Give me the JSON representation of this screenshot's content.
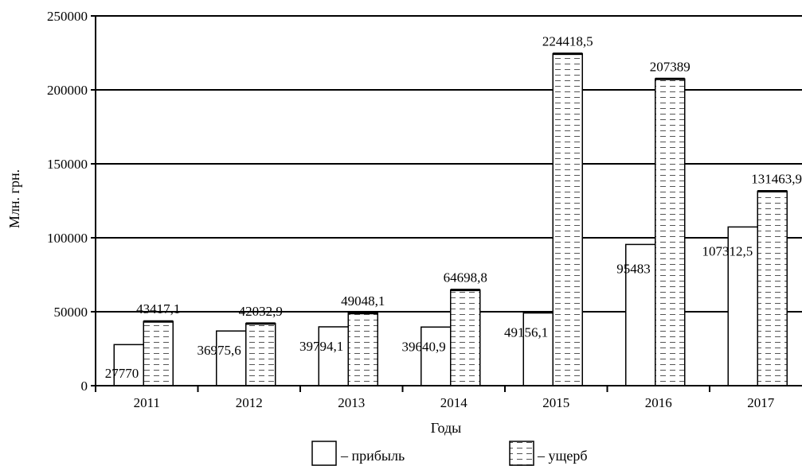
{
  "chart_data": {
    "type": "bar",
    "categories": [
      "2011",
      "2012",
      "2013",
      "2014",
      "2015",
      "2016",
      "2017"
    ],
    "series": [
      {
        "name": "прибыль",
        "values": [
          27770,
          36975.6,
          39794.1,
          39640.9,
          49156.1,
          95483,
          107312.5
        ],
        "labels": [
          "27770",
          "36975,6",
          "39794,1",
          "39640,9",
          "49156,1",
          "95483",
          "107312,5"
        ],
        "fill": "plain"
      },
      {
        "name": "ущерб",
        "values": [
          43417.1,
          42032.9,
          49048.1,
          64698.8,
          224418.5,
          207389,
          131463.9
        ],
        "labels": [
          "43417,1",
          "42032,9",
          "49048,1",
          "64698,8",
          "224418,5",
          "207389",
          "131463,9"
        ],
        "fill": "dashed"
      }
    ],
    "xlabel": "Годы",
    "ylabel": "Млн. грн.",
    "ylim": [
      0,
      250000
    ],
    "yticks": [
      "0",
      "50000",
      "100000",
      "150000",
      "200000",
      "250000"
    ],
    "grid": true,
    "legend": {
      "position": "bottom",
      "items": [
        "– прибыль",
        "– ущерб"
      ]
    }
  }
}
